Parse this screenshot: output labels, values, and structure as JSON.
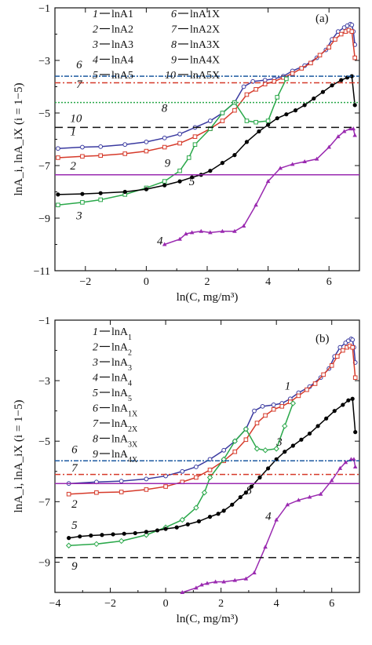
{
  "chart_data": [
    {
      "type": "line",
      "panel_label": "(a)",
      "xlabel": "ln(C, mg/m³)",
      "ylabel": "lnA_i, lnA_iX (i = 1−5)",
      "xlim": [
        -3,
        7
      ],
      "ylim": [
        -11,
        -1
      ],
      "xticks": [
        -2,
        0,
        2,
        4,
        6
      ],
      "yticks": [
        -11,
        -9,
        -7,
        -5,
        -3,
        -1
      ],
      "grid": false,
      "legend_placement": "top-left",
      "legend": [
        {
          "num": "1",
          "text": "lnA1"
        },
        {
          "num": "2",
          "text": "lnA2"
        },
        {
          "num": "3",
          "text": "lnA3"
        },
        {
          "num": "4",
          "text": "lnA4"
        },
        {
          "num": "5",
          "text": "lnA5"
        },
        {
          "num": "6",
          "text": "lnA1X"
        },
        {
          "num": "7",
          "text": "lnA2X"
        },
        {
          "num": "8",
          "text": "lnA3X"
        },
        {
          "num": "9",
          "text": "lnA4X"
        },
        {
          "num": "10",
          "text": "lnA5X"
        }
      ],
      "series": [
        {
          "label": "1",
          "color": "#3a3aa0",
          "dash": "none",
          "marker": "circle-open",
          "x": [
            -2.9,
            -2.1,
            -1.5,
            -0.7,
            0,
            0.6,
            1.1,
            1.6,
            2.1,
            2.5,
            2.9,
            3.2,
            3.5,
            3.9,
            4.2,
            4.5,
            4.8,
            5.2,
            5.6,
            5.9,
            6.1,
            6.3,
            6.5,
            6.6,
            6.7,
            6.75,
            6.8,
            6.85
          ],
          "y": [
            -6.35,
            -6.3,
            -6.28,
            -6.2,
            -6.1,
            -5.95,
            -5.8,
            -5.55,
            -5.3,
            -5.0,
            -4.6,
            -4.0,
            -3.8,
            -3.75,
            -3.7,
            -3.6,
            -3.4,
            -3.2,
            -2.9,
            -2.6,
            -2.2,
            -1.9,
            -1.75,
            -1.68,
            -1.62,
            -1.65,
            -1.9,
            -2.4
          ],
          "label_pos": [
            -2.5,
            -5.85
          ]
        },
        {
          "label": "2",
          "color": "#d63a2a",
          "dash": "none",
          "marker": "square-open",
          "x": [
            -2.9,
            -2.1,
            -1.5,
            -0.7,
            0,
            0.6,
            1.1,
            1.6,
            2.1,
            2.5,
            2.9,
            3.3,
            3.6,
            3.9,
            4.2,
            4.5,
            4.8,
            5.1,
            5.4,
            5.7,
            6.0,
            6.2,
            6.4,
            6.55,
            6.65,
            6.75,
            6.85
          ],
          "y": [
            -6.7,
            -6.65,
            -6.62,
            -6.55,
            -6.45,
            -6.3,
            -6.15,
            -5.9,
            -5.6,
            -5.3,
            -4.9,
            -4.3,
            -4.1,
            -3.9,
            -3.8,
            -3.65,
            -3.5,
            -3.3,
            -3.1,
            -2.8,
            -2.5,
            -2.2,
            -2.0,
            -1.9,
            -1.85,
            -1.9,
            -2.9
          ],
          "label_pos": [
            -2.5,
            -7.15
          ]
        },
        {
          "label": "3",
          "color": "#2aa84a",
          "dash": "none",
          "marker": "square-open",
          "x": [
            -2.9,
            -2.1,
            -1.5,
            -0.7,
            0,
            0.6,
            1.1,
            1.4,
            1.6,
            2.1,
            2.5,
            2.9,
            3.3,
            3.6,
            4.0,
            4.3,
            4.6
          ],
          "y": [
            -8.5,
            -8.4,
            -8.3,
            -8.1,
            -7.85,
            -7.6,
            -7.2,
            -6.7,
            -6.2,
            -5.6,
            -5.0,
            -4.6,
            -5.3,
            -5.35,
            -5.3,
            -4.4,
            -3.7
          ],
          "label_pos": [
            -2.3,
            -9.05
          ]
        },
        {
          "label": "4",
          "color": "#9a2ab0",
          "dash": "none",
          "marker": "triangle",
          "x": [
            0.6,
            1.1,
            1.3,
            1.5,
            1.8,
            2.1,
            2.5,
            2.9,
            3.2,
            3.6,
            4.0,
            4.4,
            4.8,
            5.2,
            5.6,
            6.0,
            6.3,
            6.5,
            6.7,
            6.8,
            6.85
          ],
          "y": [
            -10.0,
            -9.8,
            -9.6,
            -9.55,
            -9.5,
            -9.55,
            -9.5,
            -9.5,
            -9.3,
            -8.5,
            -7.6,
            -7.1,
            -6.95,
            -6.85,
            -6.75,
            -6.3,
            -5.9,
            -5.7,
            -5.6,
            -5.6,
            -5.85
          ],
          "label_pos": [
            0.35,
            -10.0
          ]
        },
        {
          "label": "5",
          "color": "#000000",
          "dash": "none",
          "marker": "circle-filled",
          "x": [
            -2.9,
            -2.1,
            -1.5,
            -0.7,
            0,
            0.6,
            1.1,
            1.5,
            1.8,
            2.1,
            2.5,
            2.9,
            3.3,
            3.7,
            4.0,
            4.3,
            4.6,
            4.9,
            5.2,
            5.5,
            5.8,
            6.1,
            6.4,
            6.6,
            6.75,
            6.85
          ],
          "y": [
            -8.1,
            -8.08,
            -8.05,
            -8.0,
            -7.9,
            -7.75,
            -7.6,
            -7.45,
            -7.35,
            -7.2,
            -6.9,
            -6.6,
            -6.1,
            -5.7,
            -5.45,
            -5.2,
            -5.05,
            -4.9,
            -4.7,
            -4.45,
            -4.2,
            -3.95,
            -3.75,
            -3.65,
            -3.6,
            -4.7
          ],
          "label_pos": [
            1.4,
            -7.75
          ]
        },
        {
          "label": "6",
          "color": "#1c5aa0",
          "dash": "6,2,2,2",
          "marker": "none",
          "x": [
            -3,
            7
          ],
          "y": [
            -3.6,
            -3.6
          ],
          "label_pos": [
            -2.3,
            -3.3
          ]
        },
        {
          "label": "7",
          "color": "#d63a2a",
          "dash": "7,3,2,3",
          "marker": "none",
          "x": [
            -3,
            7
          ],
          "y": [
            -3.85,
            -3.85
          ],
          "label_pos": [
            -2.3,
            -4.05
          ]
        },
        {
          "label": "8",
          "color": "#2aa84a",
          "dash": "2,2",
          "marker": "none",
          "x": [
            -3,
            7
          ],
          "y": [
            -4.6,
            -4.6
          ],
          "label_pos": [
            0.5,
            -4.95
          ]
        },
        {
          "label": "9",
          "color": "#9a2ab0",
          "dash": "none",
          "marker": "none",
          "x": [
            -3,
            7
          ],
          "y": [
            -7.35,
            -7.35
          ],
          "label_pos": [
            0.6,
            -7.05
          ]
        },
        {
          "label": "10",
          "color": "#111111",
          "dash": "10,6",
          "marker": "none",
          "x": [
            -3,
            7
          ],
          "y": [
            -5.55,
            -5.55
          ],
          "label_pos": [
            -2.5,
            -5.35
          ]
        }
      ]
    },
    {
      "type": "line",
      "panel_label": "(b)",
      "xlabel": "ln(C, mg/m³)",
      "ylabel": "lnA_i, lnA_iX (i = 1−5)",
      "xlim": [
        -4,
        7
      ],
      "ylim": [
        -10,
        -1
      ],
      "xticks": [
        -4,
        -2,
        0,
        2,
        4,
        6
      ],
      "yticks": [
        -9,
        -7,
        -5,
        -3,
        -1
      ],
      "grid": false,
      "legend_placement": "top-left",
      "legend": [
        {
          "num": "1",
          "text": "lnA",
          "sub": "1"
        },
        {
          "num": "2",
          "text": "lnA",
          "sub": "2"
        },
        {
          "num": "3",
          "text": "lnA",
          "sub": "3"
        },
        {
          "num": "4",
          "text": "lnA",
          "sub": "4"
        },
        {
          "num": "5",
          "text": "lnA",
          "sub": "5"
        },
        {
          "num": "6",
          "text": "lnA",
          "sub": "1X"
        },
        {
          "num": "7",
          "text": "lnA",
          "sub": "2X"
        },
        {
          "num": "8",
          "text": "lnA",
          "sub": "3X"
        },
        {
          "num": "9",
          "text": "lnA",
          "sub": "4X"
        }
      ],
      "series": [
        {
          "label": "1",
          "color": "#3a3aa0",
          "dash": "none",
          "marker": "circle-open",
          "x": [
            -3.5,
            -2.5,
            -1.6,
            -0.7,
            0,
            0.6,
            1.1,
            1.6,
            2.1,
            2.5,
            2.9,
            3.2,
            3.5,
            3.9,
            4.2,
            4.5,
            4.8,
            5.2,
            5.6,
            5.9,
            6.1,
            6.3,
            6.5,
            6.6,
            6.7,
            6.75,
            6.8,
            6.85
          ],
          "y": [
            -6.4,
            -6.35,
            -6.32,
            -6.25,
            -6.15,
            -6.0,
            -5.85,
            -5.6,
            -5.3,
            -5.0,
            -4.6,
            -4.0,
            -3.85,
            -3.8,
            -3.75,
            -3.6,
            -3.4,
            -3.2,
            -2.9,
            -2.6,
            -2.2,
            -1.9,
            -1.75,
            -1.68,
            -1.62,
            -1.65,
            -1.9,
            -2.4
          ],
          "label_pos": [
            4.3,
            -3.3
          ]
        },
        {
          "label": "2",
          "color": "#d63a2a",
          "dash": "none",
          "marker": "square-open",
          "x": [
            -3.5,
            -2.5,
            -1.6,
            -0.7,
            0,
            0.6,
            1.1,
            1.6,
            2.1,
            2.5,
            2.9,
            3.3,
            3.6,
            3.9,
            4.2,
            4.5,
            4.8,
            5.1,
            5.4,
            5.7,
            6.0,
            6.2,
            6.4,
            6.55,
            6.65,
            6.75,
            6.85
          ],
          "y": [
            -6.75,
            -6.7,
            -6.68,
            -6.6,
            -6.5,
            -6.35,
            -6.2,
            -5.95,
            -5.65,
            -5.35,
            -4.95,
            -4.4,
            -4.15,
            -3.95,
            -3.85,
            -3.7,
            -3.5,
            -3.3,
            -3.1,
            -2.8,
            -2.5,
            -2.2,
            -2.0,
            -1.9,
            -1.85,
            -1.9,
            -2.9
          ],
          "label_pos": [
            -3.4,
            -7.2
          ]
        },
        {
          "label": "3",
          "color": "#2aa84a",
          "dash": "none",
          "marker": "diamond-open",
          "x": [
            -3.5,
            -2.5,
            -1.6,
            -0.7,
            0,
            0.6,
            1.1,
            1.4,
            1.6,
            2.1,
            2.5,
            2.9,
            3.3,
            3.6,
            4.0,
            4.3,
            4.6
          ],
          "y": [
            -8.45,
            -8.4,
            -8.3,
            -8.1,
            -7.85,
            -7.6,
            -7.2,
            -6.7,
            -6.2,
            -5.6,
            -5.0,
            -4.6,
            -5.25,
            -5.3,
            -5.25,
            -4.5,
            -3.75
          ],
          "label_pos": [
            4.0,
            -5.15
          ]
        },
        {
          "label": "4",
          "color": "#9a2ab0",
          "dash": "none",
          "marker": "triangle",
          "x": [
            0.6,
            1.1,
            1.3,
            1.5,
            1.8,
            2.1,
            2.5,
            2.9,
            3.2,
            3.6,
            4.0,
            4.4,
            4.8,
            5.2,
            5.6,
            6.0,
            6.3,
            6.5,
            6.7,
            6.8,
            6.85
          ],
          "y": [
            -10.0,
            -9.85,
            -9.75,
            -9.7,
            -9.65,
            -9.65,
            -9.6,
            -9.55,
            -9.35,
            -8.5,
            -7.6,
            -7.1,
            -6.95,
            -6.85,
            -6.75,
            -6.3,
            -5.9,
            -5.7,
            -5.6,
            -5.6,
            -5.85
          ],
          "label_pos": [
            3.6,
            -7.6
          ]
        },
        {
          "label": "5",
          "color": "#000000",
          "dash": "none",
          "marker": "circle-filled",
          "x": [
            -3.5,
            -3.1,
            -2.7,
            -2.3,
            -1.9,
            -1.5,
            -1.1,
            -0.7,
            -0.3,
            0,
            0.4,
            0.8,
            1.2,
            1.6,
            1.9,
            2.1,
            2.4,
            2.7,
            2.9,
            3.1,
            3.4,
            3.7,
            4.0,
            4.3,
            4.6,
            4.9,
            5.2,
            5.5,
            5.8,
            6.1,
            6.4,
            6.6,
            6.75,
            6.85
          ],
          "y": [
            -8.2,
            -8.15,
            -8.12,
            -8.1,
            -8.08,
            -8.06,
            -8.04,
            -8.0,
            -7.95,
            -7.9,
            -7.85,
            -7.75,
            -7.65,
            -7.5,
            -7.4,
            -7.3,
            -7.1,
            -6.85,
            -6.7,
            -6.5,
            -6.2,
            -5.9,
            -5.6,
            -5.35,
            -5.15,
            -4.95,
            -4.75,
            -4.5,
            -4.25,
            -4.0,
            -3.8,
            -3.65,
            -3.6,
            -4.7
          ],
          "label_pos": [
            -3.4,
            -7.9
          ]
        },
        {
          "label": "6",
          "color": "#1c5aa0",
          "dash": "6,2,2,2",
          "marker": "none",
          "x": [
            -4,
            7
          ],
          "y": [
            -5.65,
            -5.65
          ],
          "label_pos": [
            -3.4,
            -5.4
          ]
        },
        {
          "label": "7",
          "color": "#d63a2a",
          "dash": "7,3,2,3",
          "marker": "none",
          "x": [
            -4,
            7
          ],
          "y": [
            -6.1,
            -6.1
          ],
          "label_pos": [
            -3.4,
            -6.0
          ]
        },
        {
          "label": "8",
          "color": "#9a2ab0",
          "dash": "none",
          "marker": "none",
          "x": [
            -4,
            7
          ],
          "y": [
            -6.4,
            -6.4
          ],
          "label_pos": [
            2.9,
            -6.75
          ]
        },
        {
          "label": "9",
          "color": "#111111",
          "dash": "10,6",
          "marker": "none",
          "x": [
            -4,
            7
          ],
          "y": [
            -8.85,
            -8.85
          ],
          "label_pos": [
            -3.4,
            -9.25
          ]
        }
      ]
    }
  ]
}
